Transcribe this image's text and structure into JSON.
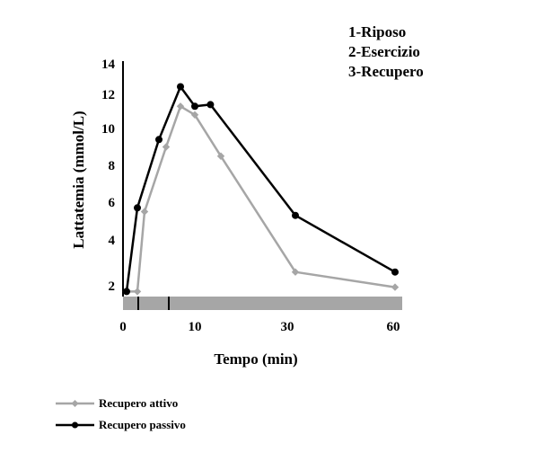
{
  "chart_data": {
    "type": "line",
    "xlabel": "Tempo (min)",
    "ylabel": "Lattatemia (mmol/L)",
    "x_ticks": [
      "0",
      "10",
      "30",
      "60"
    ],
    "y_ticks": [
      "2",
      "4",
      "6",
      "8",
      "10",
      "12",
      "14"
    ],
    "phases": [
      "1-Riposo",
      "2-Esercizio",
      "3-Recupero"
    ],
    "series": [
      {
        "name": "Recupero attivo",
        "color": "#a6a6a6",
        "marker": "diamond",
        "points": [
          {
            "x": "0.5",
            "y": 1.6
          },
          {
            "x": "2",
            "y": 1.6
          },
          {
            "x": "3",
            "y": 5.5
          },
          {
            "x": "6",
            "y": 9.0
          },
          {
            "x": "8",
            "y": 11.3
          },
          {
            "x": "10",
            "y": 10.8
          },
          {
            "x": "15",
            "y": 8.5
          },
          {
            "x": "30",
            "y": 2.6
          },
          {
            "x": "60",
            "y": 1.9
          }
        ]
      },
      {
        "name": "Recupero passivo",
        "color": "#000000",
        "marker": "circle",
        "points": [
          {
            "x": "0.5",
            "y": 1.6
          },
          {
            "x": "2",
            "y": 5.7
          },
          {
            "x": "5",
            "y": 9.4
          },
          {
            "x": "8",
            "y": 12.5
          },
          {
            "x": "10",
            "y": 11.3
          },
          {
            "x": "13",
            "y": 11.4
          },
          {
            "x": "30",
            "y": 5.3
          },
          {
            "x": "60",
            "y": 2.6
          }
        ]
      }
    ]
  }
}
